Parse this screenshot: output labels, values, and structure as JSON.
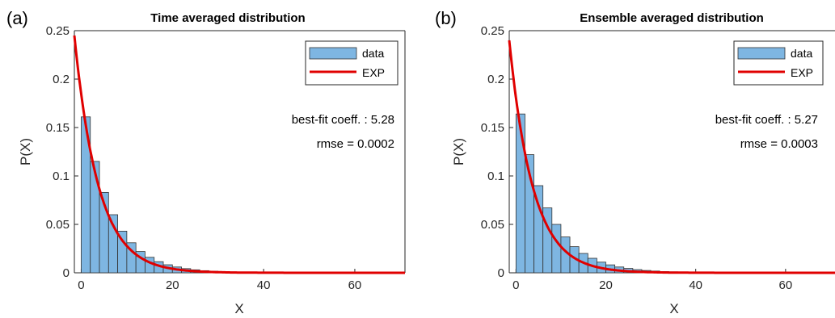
{
  "chart_data": [
    {
      "type": "bar",
      "panel_label": "(a)",
      "title": "Time averaged distribution",
      "xlabel": "X",
      "ylabel": "P(X)",
      "xlim": [
        -1.5,
        71
      ],
      "ylim": [
        0,
        0.25
      ],
      "xticks": [
        "0",
        "20",
        "40",
        "60"
      ],
      "yticks": [
        "0",
        "0.05",
        "0.1",
        "0.15",
        "0.2",
        "0.25"
      ],
      "bin_width": 2,
      "bin_edges_start": 0,
      "values": [
        0.161,
        0.115,
        0.083,
        0.06,
        0.043,
        0.031,
        0.022,
        0.016,
        0.0115,
        0.0083,
        0.006,
        0.0043,
        0.0031,
        0.0022,
        0.0016,
        0.0011,
        0.0008,
        0.0006,
        0.0004,
        0.0003,
        0.0002,
        0.00015,
        0.0001,
        0.0001,
        5e-05,
        5e-05,
        3e-05,
        2e-05,
        1e-05,
        1e-05,
        1e-05,
        1e-05,
        1e-05,
        1e-05,
        1e-05
      ],
      "fit": {
        "name": "EXP",
        "a0": 0.245,
        "scale": 5.28,
        "color": "#e00000"
      },
      "legend": [
        "data",
        "EXP"
      ],
      "legend_position": "top-right",
      "annotations": [
        "best-fit coeff. : 5.28",
        "rmse = 0.0002"
      ],
      "bar_color": "#7eb6e2",
      "grid": false
    },
    {
      "type": "bar",
      "panel_label": "(b)",
      "title": "Ensemble averaged distribution",
      "xlabel": "X",
      "ylabel": "P(X)",
      "xlim": [
        -1.5,
        71
      ],
      "ylim": [
        0,
        0.25
      ],
      "xticks": [
        "0",
        "20",
        "40",
        "60"
      ],
      "yticks": [
        "0",
        "0.05",
        "0.1",
        "0.15",
        "0.2",
        "0.25"
      ],
      "bin_width": 2,
      "bin_edges_start": 0,
      "values": [
        0.164,
        0.122,
        0.09,
        0.067,
        0.05,
        0.037,
        0.027,
        0.02,
        0.015,
        0.011,
        0.0082,
        0.006,
        0.0045,
        0.0033,
        0.0024,
        0.0018,
        0.0013,
        0.001,
        0.0007,
        0.0005,
        0.0004,
        0.0003,
        0.0002,
        0.00015,
        0.0001,
        8e-05,
        5e-05,
        3e-05,
        2e-05,
        1e-05,
        1e-05,
        1e-05,
        1e-05,
        1e-05,
        1e-05
      ],
      "fit": {
        "name": "EXP",
        "a0": 0.24,
        "scale": 5.27,
        "color": "#e00000"
      },
      "legend": [
        "data",
        "EXP"
      ],
      "legend_position": "top-right",
      "annotations": [
        "best-fit coeff. : 5.27",
        "rmse = 0.0003"
      ],
      "bar_color": "#7eb6e2",
      "grid": false
    }
  ]
}
